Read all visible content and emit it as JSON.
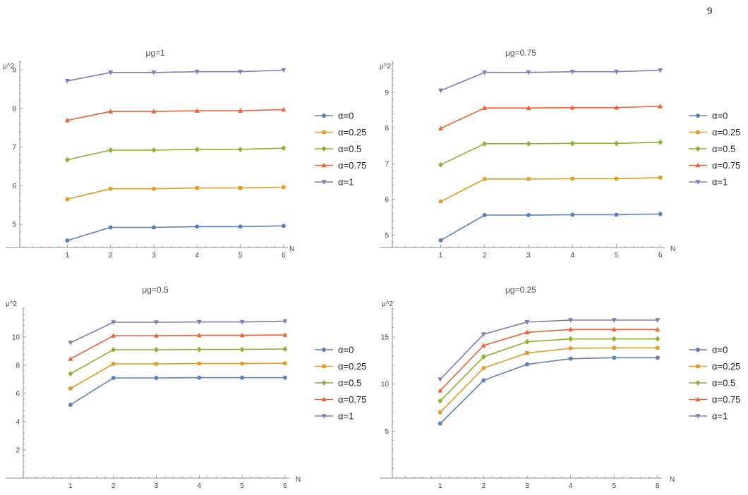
{
  "page": {
    "number": "9"
  },
  "colors": {
    "series": [
      "#5e81b5",
      "#e19c24",
      "#8fb032",
      "#eb6235",
      "#8778b3"
    ],
    "axis": "#888888"
  },
  "chart_data": [
    {
      "type": "line",
      "title": "μg=1",
      "ylabel": "μ^2",
      "xlabel": "N",
      "x": [
        1,
        2,
        3,
        4,
        5,
        6
      ],
      "xlim": [
        -0.1,
        6.1
      ],
      "ylim": [
        4.4,
        9.2
      ],
      "yticks": [
        5,
        6,
        7,
        8,
        9
      ],
      "xticks": [
        1,
        2,
        3,
        4,
        5,
        6
      ],
      "legend_position": "right",
      "series": [
        {
          "name": "α=0",
          "marker": "circle",
          "values": [
            4.58,
            4.92,
            4.92,
            4.94,
            4.94,
            4.96
          ]
        },
        {
          "name": "α=0.25",
          "marker": "square",
          "values": [
            5.65,
            5.92,
            5.92,
            5.94,
            5.94,
            5.96
          ]
        },
        {
          "name": "α=0.5",
          "marker": "diamond",
          "values": [
            6.67,
            6.92,
            6.92,
            6.94,
            6.94,
            6.97
          ]
        },
        {
          "name": "α=0.75",
          "marker": "triangle-up",
          "values": [
            7.69,
            7.92,
            7.92,
            7.94,
            7.94,
            7.97
          ]
        },
        {
          "name": "α=1",
          "marker": "triangle-down",
          "values": [
            8.71,
            8.93,
            8.93,
            8.95,
            8.95,
            8.99
          ]
        }
      ]
    },
    {
      "type": "line",
      "title": "μg=0.75",
      "ylabel": "μ^2",
      "xlabel": "N",
      "x": [
        1,
        2,
        3,
        4,
        5,
        6
      ],
      "xlim": [
        -0.1,
        6.1
      ],
      "ylim": [
        4.65,
        9.85
      ],
      "yticks": [
        5,
        6,
        7,
        8,
        9
      ],
      "xticks": [
        1,
        2,
        3,
        4,
        5,
        6
      ],
      "legend_position": "right",
      "series": [
        {
          "name": "α=0",
          "marker": "circle",
          "values": [
            4.85,
            5.56,
            5.56,
            5.57,
            5.57,
            5.59
          ]
        },
        {
          "name": "α=0.25",
          "marker": "square",
          "values": [
            5.94,
            6.57,
            6.57,
            6.58,
            6.58,
            6.61
          ]
        },
        {
          "name": "α=0.5",
          "marker": "diamond",
          "values": [
            6.97,
            7.56,
            7.56,
            7.57,
            7.57,
            7.6
          ]
        },
        {
          "name": "α=0.75",
          "marker": "triangle-up",
          "values": [
            7.99,
            8.56,
            8.56,
            8.57,
            8.57,
            8.61
          ]
        },
        {
          "name": "α=1",
          "marker": "triangle-down",
          "values": [
            9.05,
            9.56,
            9.56,
            9.58,
            9.58,
            9.62
          ]
        }
      ]
    },
    {
      "type": "line",
      "title": "μg=0.5",
      "ylabel": "μ^2",
      "xlabel": "N",
      "x": [
        1,
        2,
        3,
        4,
        5,
        6
      ],
      "xlim": [
        -0.1,
        6.1
      ],
      "ylim": [
        0,
        12
      ],
      "yticks": [
        2,
        4,
        6,
        8,
        10
      ],
      "xticks": [
        1,
        2,
        3,
        4,
        5,
        6
      ],
      "legend_position": "right",
      "series": [
        {
          "name": "α=0",
          "marker": "circle",
          "values": [
            5.2,
            7.1,
            7.1,
            7.12,
            7.12,
            7.12
          ]
        },
        {
          "name": "α=0.25",
          "marker": "square",
          "values": [
            6.35,
            8.1,
            8.1,
            8.12,
            8.12,
            8.14
          ]
        },
        {
          "name": "α=0.5",
          "marker": "diamond",
          "values": [
            7.4,
            9.1,
            9.1,
            9.12,
            9.12,
            9.15
          ]
        },
        {
          "name": "α=0.75",
          "marker": "triangle-up",
          "values": [
            8.45,
            10.1,
            10.1,
            10.12,
            10.12,
            10.15
          ]
        },
        {
          "name": "α=1",
          "marker": "triangle-down",
          "values": [
            9.6,
            11.05,
            11.05,
            11.07,
            11.07,
            11.12
          ]
        }
      ]
    },
    {
      "type": "line",
      "title": "μg=0.25",
      "ylabel": "μ^2",
      "xlabel": "N",
      "x": [
        1,
        2,
        3,
        4,
        5,
        6
      ],
      "xlim": [
        -0.1,
        6.1
      ],
      "ylim": [
        0,
        18
      ],
      "yticks": [
        5,
        10,
        15
      ],
      "xticks": [
        1,
        2,
        3,
        4,
        5,
        6
      ],
      "legend_position": "right",
      "series": [
        {
          "name": "α=0",
          "marker": "circle",
          "values": [
            5.8,
            10.4,
            12.1,
            12.7,
            12.8,
            12.8
          ]
        },
        {
          "name": "α=0.25",
          "marker": "square",
          "values": [
            7.0,
            11.7,
            13.3,
            13.8,
            13.85,
            13.85
          ]
        },
        {
          "name": "α=0.5",
          "marker": "diamond",
          "values": [
            8.2,
            12.9,
            14.5,
            14.8,
            14.8,
            14.8
          ]
        },
        {
          "name": "α=0.75",
          "marker": "triangle-up",
          "values": [
            9.3,
            14.1,
            15.5,
            15.8,
            15.8,
            15.8
          ]
        },
        {
          "name": "α=1",
          "marker": "triangle-down",
          "values": [
            10.5,
            15.3,
            16.6,
            16.8,
            16.8,
            16.8
          ]
        }
      ]
    }
  ]
}
